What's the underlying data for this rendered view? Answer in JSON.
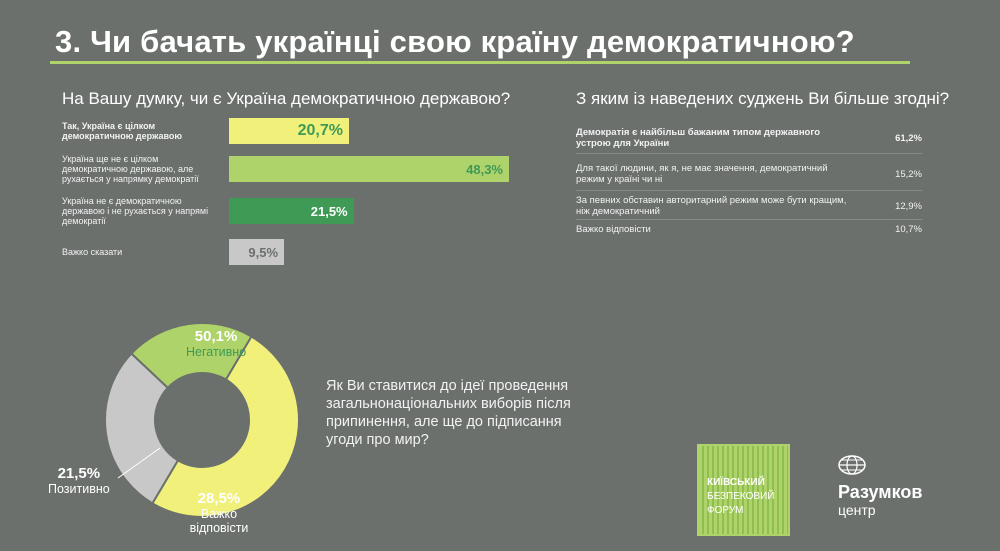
{
  "header": {
    "title": "3. Чи бачать українці свою країну демократичною?"
  },
  "chart_data": [
    {
      "type": "bar",
      "title": "На Вашу думку, чи є Україна демократичною державою?",
      "categories": [
        "Так, Україна є цілком демократичною державою",
        "Україна ще не є цілком демократичною державою, але рухається у напрямку демократії",
        "Україна не є демократичною державою і не рухається у напрямі демократії",
        "Важко сказати"
      ],
      "values": [
        20.7,
        48.3,
        21.5,
        9.5
      ],
      "value_labels": [
        "20,7%",
        "48,3%",
        "21,5%",
        "9,5%"
      ],
      "colors": [
        "#f0f07a",
        "#aed36a",
        "#3f9a56",
        "#c8c8c8"
      ],
      "value_colors": [
        "#3f9a56",
        "#3f9a56",
        "#ffffff",
        "#6b706d"
      ]
    },
    {
      "type": "table",
      "title": "З яким із наведених суджень Ви більше згодні?",
      "rows": [
        {
          "label": "Демократія є найбільш бажаним типом державного устрою для України",
          "value": "61,2%"
        },
        {
          "label": "Для такої людини, як я, не має значення, демократичний режим у країні чи ні",
          "value": "15,2%"
        },
        {
          "label": "За певних обставин авторитарний режим може бути кращим, ніж демократичний",
          "value": "12,9%"
        },
        {
          "label": "Важко відповісти",
          "value": "10,7%"
        }
      ]
    },
    {
      "type": "pie",
      "title": "Як Ви ставитися до ідеї проведення загальнонаціональних виборів після припинення, але ще до підписання угоди про мир?",
      "slices": [
        {
          "name": "Негативно",
          "value": 50.1,
          "label": "50,1%",
          "color": "#f0f07a"
        },
        {
          "name": "Важко відповісти",
          "value": 28.5,
          "label": "28,5%",
          "color": "#c8c8c8"
        },
        {
          "name": "Позитивно",
          "value": 21.5,
          "label": "21,5%",
          "color": "#aed36a"
        }
      ]
    }
  ],
  "logos": {
    "kbf_lines": [
      "КИЇВСЬКИЙ",
      "БЕЗПЕКОВИЙ",
      "ФОРУМ"
    ],
    "razumkov_name": "Разумков",
    "razumkov_sub": "центр"
  }
}
